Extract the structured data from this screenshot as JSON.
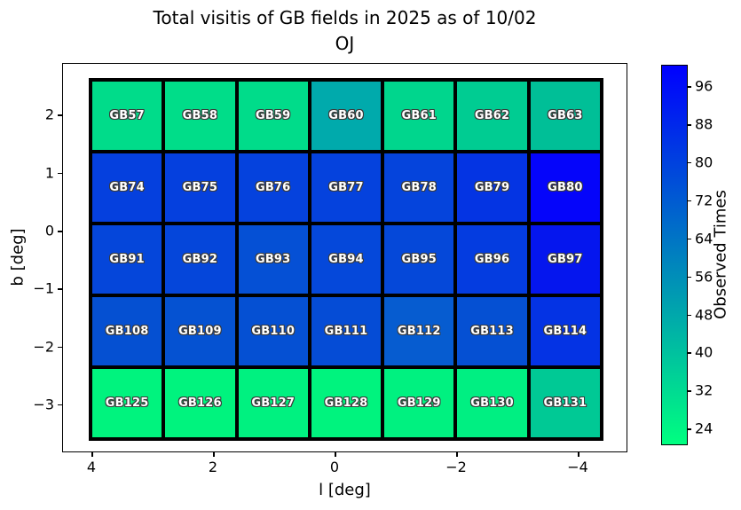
{
  "title": {
    "line1": "Total visitis of GB fields in 2025 as of 10/02",
    "line2": "OJ"
  },
  "axes": {
    "xlabel": "l [deg]",
    "ylabel": "b [deg]",
    "x_ticks": [
      {
        "value": 4,
        "label": "4"
      },
      {
        "value": 2,
        "label": "2"
      },
      {
        "value": 0,
        "label": "0"
      },
      {
        "value": -2,
        "label": "−2"
      },
      {
        "value": -4,
        "label": "−4"
      }
    ],
    "y_ticks": [
      {
        "value": 2,
        "label": "2"
      },
      {
        "value": 1,
        "label": "1"
      },
      {
        "value": 0,
        "label": "0"
      },
      {
        "value": -1,
        "label": "−1"
      },
      {
        "value": -2,
        "label": "−2"
      },
      {
        "value": -3,
        "label": "−3"
      }
    ]
  },
  "colorbar": {
    "label": "Observed Times",
    "ticks": [
      96,
      88,
      80,
      72,
      64,
      56,
      48,
      40,
      32,
      24
    ],
    "vmin_est": 20.5,
    "vmax_est": 100.5,
    "gradient_bottom": "#00ff80",
    "gradient_top": "#0000ff"
  },
  "chart_data": {
    "type": "heatmap",
    "title": "Total visitis of GB fields in 2025 as of 10/02 OJ",
    "xlabel": "l [deg]",
    "ylabel": "b [deg]",
    "x_axis_reversed": true,
    "x_tick_labels": [
      4,
      2,
      0,
      -2,
      -4
    ],
    "y_tick_labels": [
      2,
      1,
      0,
      -1,
      -2,
      -3
    ],
    "colorbar_label": "Observed Times",
    "colorbar_ticks": [
      96,
      88,
      80,
      72,
      64,
      56,
      48,
      40,
      32,
      24
    ],
    "colorbar_range_est": [
      21,
      101
    ],
    "colormap": "winter_r (green low → blue high)",
    "rows": [
      {
        "b_center_est": 2.0,
        "cells": [
          {
            "label": "GB57",
            "observed_times_est": 31,
            "color": "#00dc8a"
          },
          {
            "label": "GB58",
            "observed_times_est": 31,
            "color": "#00dd89"
          },
          {
            "label": "GB59",
            "observed_times_est": 31,
            "color": "#00dc8a"
          },
          {
            "label": "GB60",
            "observed_times_est": 48,
            "color": "#00aaac"
          },
          {
            "label": "GB61",
            "observed_times_est": 33,
            "color": "#00d68d"
          },
          {
            "label": "GB62",
            "observed_times_est": 36,
            "color": "#00cc92"
          },
          {
            "label": "GB63",
            "observed_times_est": 38,
            "color": "#00bf97"
          }
        ]
      },
      {
        "b_center_est": 0.75,
        "cells": [
          {
            "label": "GB74",
            "observed_times_est": 80,
            "color": "#0540de"
          },
          {
            "label": "GB75",
            "observed_times_est": 80,
            "color": "#0540de"
          },
          {
            "label": "GB76",
            "observed_times_est": 79,
            "color": "#0542dd"
          },
          {
            "label": "GB77",
            "observed_times_est": 79,
            "color": "#0542dd"
          },
          {
            "label": "GB78",
            "observed_times_est": 79,
            "color": "#0544dc"
          },
          {
            "label": "GB79",
            "observed_times_est": 84,
            "color": "#0434e3"
          },
          {
            "label": "GB80",
            "observed_times_est": 99,
            "color": "#0505fa"
          }
        ]
      },
      {
        "b_center_est": -0.5,
        "cells": [
          {
            "label": "GB91",
            "observed_times_est": 78,
            "color": "#0546da"
          },
          {
            "label": "GB92",
            "observed_times_est": 78,
            "color": "#0546da"
          },
          {
            "label": "GB93",
            "observed_times_est": 75,
            "color": "#0550d5"
          },
          {
            "label": "GB94",
            "observed_times_est": 78,
            "color": "#0548da"
          },
          {
            "label": "GB95",
            "observed_times_est": 77,
            "color": "#0548d9"
          },
          {
            "label": "GB96",
            "observed_times_est": 82,
            "color": "#043ce0"
          },
          {
            "label": "GB97",
            "observed_times_est": 91,
            "color": "#0516ee"
          }
        ]
      },
      {
        "b_center_est": -1.75,
        "cells": [
          {
            "label": "GB108",
            "observed_times_est": 73,
            "color": "#0550d2"
          },
          {
            "label": "GB109",
            "observed_times_est": 73,
            "color": "#0552d2"
          },
          {
            "label": "GB110",
            "observed_times_est": 73,
            "color": "#0550d3"
          },
          {
            "label": "GB111",
            "observed_times_est": 75,
            "color": "#054cd6"
          },
          {
            "label": "GB112",
            "observed_times_est": 70,
            "color": "#065cd0"
          },
          {
            "label": "GB113",
            "observed_times_est": 73,
            "color": "#0550d3"
          },
          {
            "label": "GB114",
            "observed_times_est": 84,
            "color": "#0433e4"
          }
        ]
      },
      {
        "b_center_est": -3.0,
        "cells": [
          {
            "label": "GB125",
            "observed_times_est": 23,
            "color": "#00f37e"
          },
          {
            "label": "GB126",
            "observed_times_est": 23,
            "color": "#00f37e"
          },
          {
            "label": "GB127",
            "observed_times_est": 23,
            "color": "#00f180"
          },
          {
            "label": "GB128",
            "observed_times_est": 23,
            "color": "#00f37e"
          },
          {
            "label": "GB129",
            "observed_times_est": 23,
            "color": "#00f180"
          },
          {
            "label": "GB130",
            "observed_times_est": 24,
            "color": "#00ef82"
          },
          {
            "label": "GB131",
            "observed_times_est": 36,
            "color": "#00c995"
          }
        ]
      }
    ]
  }
}
